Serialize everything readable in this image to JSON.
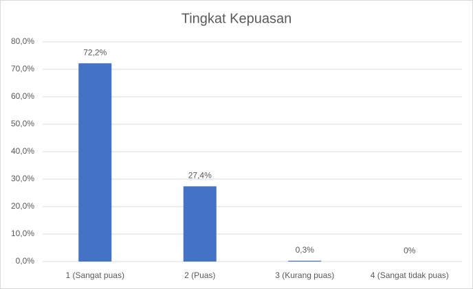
{
  "chart_data": {
    "type": "bar",
    "title": "Tingkat Kepuasan",
    "categories": [
      "1 (Sangat puas)",
      "2 (Puas)",
      "3 (Kurang puas)",
      "4 (Sangat tidak puas)"
    ],
    "values": [
      72.2,
      27.4,
      0.3,
      0
    ],
    "value_labels": [
      "72,2%",
      "27,4%",
      "0,3%",
      "0%"
    ],
    "color": "#4472c4",
    "ylim": [
      0,
      80
    ],
    "yticks": [
      {
        "value": 0,
        "label": "0,0%"
      },
      {
        "value": 10,
        "label": "10,0%"
      },
      {
        "value": 20,
        "label": "20,0%"
      },
      {
        "value": 30,
        "label": "30,0%"
      },
      {
        "value": 40,
        "label": "40,0%"
      },
      {
        "value": 50,
        "label": "50,0%"
      },
      {
        "value": 60,
        "label": "60,0%"
      },
      {
        "value": 70,
        "label": "70,0%"
      },
      {
        "value": 80,
        "label": "80,0%"
      }
    ],
    "grid": true
  }
}
